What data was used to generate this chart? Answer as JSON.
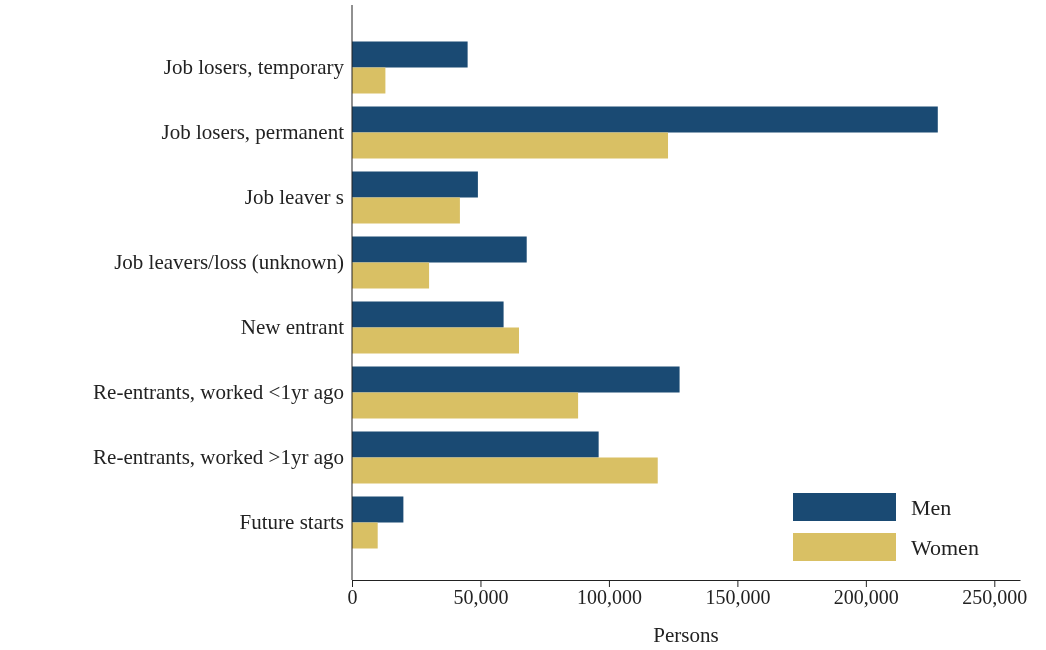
{
  "chart_data": {
    "type": "bar",
    "orientation": "horizontal",
    "xlabel": "Persons",
    "categories": [
      "Job losers, temporary",
      "Job losers, permanent",
      "Job leaver s",
      "Job leavers/loss (unknown)",
      "New entrant",
      "Re-entrants, worked <1yr ago",
      "Re-entrants, worked >1yr ago",
      "Future starts"
    ],
    "series": [
      {
        "name": "Men",
        "color": "#1a4a73",
        "values": [
          45000,
          228000,
          49000,
          68000,
          59000,
          127500,
          96000,
          20000
        ]
      },
      {
        "name": "Women",
        "color": "#d9c064",
        "values": [
          13000,
          123000,
          42000,
          30000,
          65000,
          88000,
          119000,
          10000
        ]
      }
    ],
    "xlim": [
      0,
      260000
    ],
    "xticks": [
      {
        "value": 0,
        "label": "0"
      },
      {
        "value": 50000,
        "label": "50,000"
      },
      {
        "value": 100000,
        "label": "100,000"
      },
      {
        "value": 150000,
        "label": "150,000"
      },
      {
        "value": 200000,
        "label": "200,000"
      },
      {
        "value": 250000,
        "label": "250,000"
      }
    ],
    "legend": "bottom right",
    "grid": false
  }
}
